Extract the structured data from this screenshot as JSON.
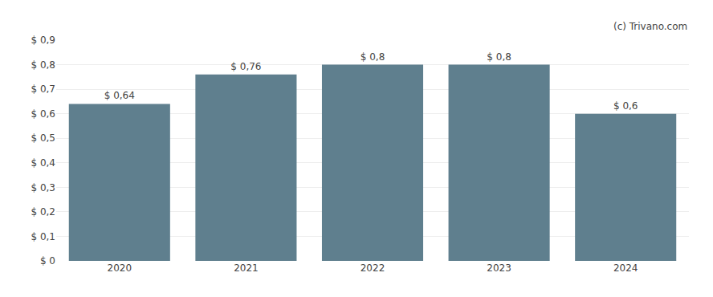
{
  "chart_data": {
    "type": "bar",
    "categories": [
      "2020",
      "2021",
      "2022",
      "2023",
      "2024"
    ],
    "values": [
      0.64,
      0.76,
      0.8,
      0.8,
      0.6
    ],
    "value_labels": [
      "$ 0,64",
      "$ 0,76",
      "$ 0,8",
      "$ 0,8",
      "$ 0,6"
    ],
    "data_labels": true,
    "color": "#5f7f8e",
    "ylim": [
      0,
      0.9
    ],
    "yticks": [
      {
        "value": 0,
        "label": "$ 0"
      },
      {
        "value": 0.1,
        "label": "$ 0,1"
      },
      {
        "value": 0.2,
        "label": "$ 0,2"
      },
      {
        "value": 0.3,
        "label": "$ 0,3"
      },
      {
        "value": 0.4,
        "label": "$ 0,4"
      },
      {
        "value": 0.5,
        "label": "$ 0,5"
      },
      {
        "value": 0.6,
        "label": "$ 0,6"
      },
      {
        "value": 0.7,
        "label": "$ 0,7"
      },
      {
        "value": 0.8,
        "label": "$ 0,8"
      },
      {
        "value": 0.9,
        "label": "$ 0,9"
      }
    ],
    "grid": true,
    "annotations": [
      "(c) Trivano.com"
    ]
  }
}
